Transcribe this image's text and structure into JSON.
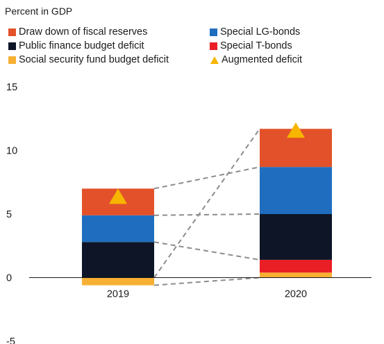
{
  "subtitle": "Percent in GDP",
  "legend": [
    {
      "label": "Draw down of fiscal reserves",
      "color": "#e2512a",
      "shape": "square"
    },
    {
      "label": "Special LG-bonds",
      "color": "#1f6dbf",
      "shape": "square"
    },
    {
      "label": "Public finance budget deficit",
      "color": "#0d1526",
      "shape": "square"
    },
    {
      "label": "Special T-bonds",
      "color": "#ea1f25",
      "shape": "square"
    },
    {
      "label": "Social security fund budget deficit",
      "color": "#f7b034",
      "shape": "square"
    },
    {
      "label": "Augmented deficit",
      "color": "#f7b500",
      "shape": "triangle"
    }
  ],
  "chart_data": {
    "type": "bar",
    "stacked": true,
    "categories": [
      "2019",
      "2020"
    ],
    "ylim": [
      -5,
      15
    ],
    "yticks": [
      -5,
      0,
      5,
      10,
      15
    ],
    "series": [
      {
        "name": "Social security fund budget deficit",
        "color": "#f7b034",
        "values": [
          -0.6,
          0.4
        ]
      },
      {
        "name": "Special T-bonds",
        "color": "#ea1f25",
        "values": [
          0,
          1.0
        ]
      },
      {
        "name": "Public finance budget deficit",
        "color": "#0d1526",
        "values": [
          2.8,
          3.6
        ]
      },
      {
        "name": "Special LG-bonds",
        "color": "#1f6dbf",
        "values": [
          2.1,
          3.7
        ]
      },
      {
        "name": "Draw down of fiscal reserves",
        "color": "#e2512a",
        "values": [
          2.1,
          3.0
        ]
      }
    ],
    "augmented_deficit": {
      "name": "Augmented deficit",
      "color": "#f7b500",
      "values": [
        6.4,
        11.6
      ]
    },
    "connectors": "dashed",
    "grid": false
  }
}
